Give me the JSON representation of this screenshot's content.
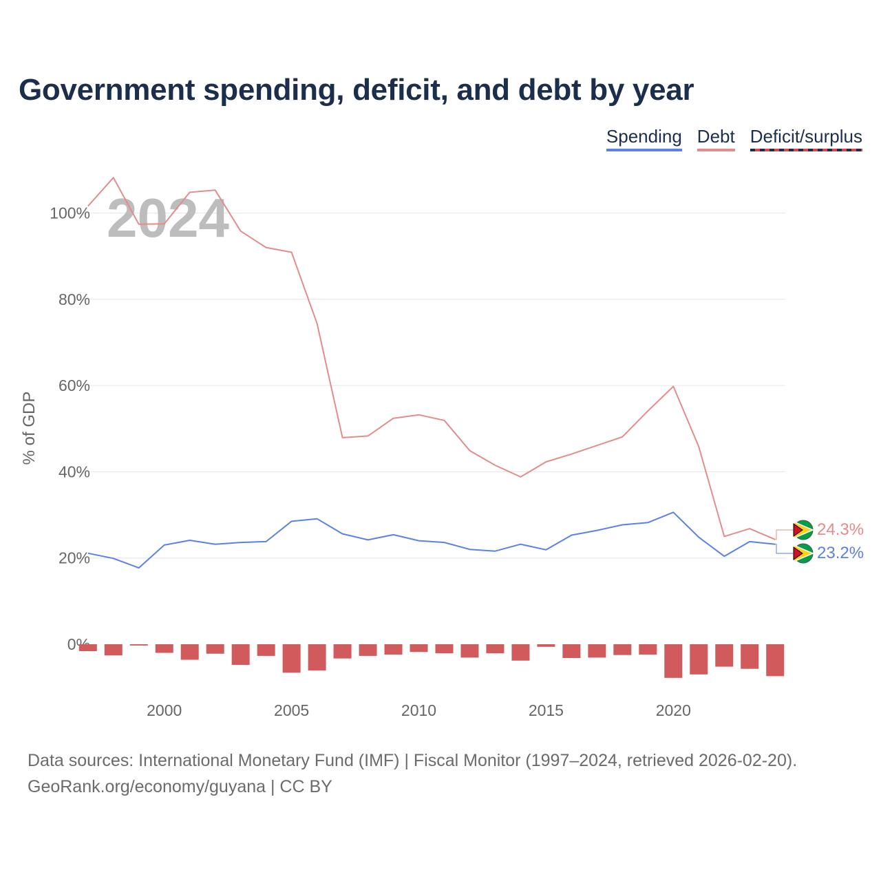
{
  "title": "Government spending, deficit, and debt by year",
  "legend": {
    "spending": "Spending",
    "debt": "Debt",
    "deficit": "Deficit/surplus"
  },
  "year_label": "2024",
  "end_labels": {
    "debt": "24.3%",
    "spending": "23.2%"
  },
  "footer": {
    "line1": "Data sources: International Monetary Fund (IMF) | Fiscal Monitor (1997–2024, retrieved 2026-02-20).",
    "line2": "GeoRank.org/economy/guyana | CC BY"
  },
  "colors": {
    "spending": "#5b80e8",
    "debt": "#e48b8e",
    "deficit_bar": "#d05a5c",
    "title": "#1b2f4c",
    "axis_text": "#666666",
    "grid": "#e6e6e6"
  },
  "chart_data": {
    "type": "line",
    "ylabel": "% of GDP",
    "xlabel": "",
    "xlim": [
      1996.6,
      2024.4
    ],
    "x_ticks": [
      2000,
      2005,
      2010,
      2015,
      2020
    ],
    "y_ticks": [
      0,
      20,
      40,
      60,
      80,
      100
    ],
    "y_tick_labels": [
      "0%",
      "20%",
      "40%",
      "60%",
      "80%",
      "100%"
    ],
    "x": [
      1997,
      1998,
      1999,
      2000,
      2001,
      2002,
      2003,
      2004,
      2005,
      2006,
      2007,
      2008,
      2009,
      2010,
      2011,
      2012,
      2013,
      2014,
      2015,
      2016,
      2017,
      2018,
      2019,
      2020,
      2021,
      2022,
      2023,
      2024
    ],
    "series": [
      {
        "name": "Spending",
        "type": "line",
        "values": [
          21.1,
          19.9,
          17.7,
          23.0,
          24.1,
          23.2,
          23.6,
          23.8,
          28.5,
          29.1,
          25.6,
          24.2,
          25.4,
          24.0,
          23.6,
          22.0,
          21.6,
          23.2,
          21.9,
          25.3,
          26.4,
          27.7,
          28.2,
          30.6,
          24.8,
          20.4,
          23.8,
          23.2
        ]
      },
      {
        "name": "Debt",
        "type": "line",
        "values": [
          101.6,
          108.2,
          97.4,
          97.5,
          104.8,
          105.3,
          95.8,
          92.0,
          90.9,
          74.4,
          47.9,
          48.3,
          52.4,
          53.2,
          51.9,
          44.9,
          41.5,
          38.8,
          42.3,
          44.1,
          46.1,
          48.1,
          54.1,
          59.8,
          45.8,
          25.0,
          26.8,
          24.3
        ]
      },
      {
        "name": "Deficit/surplus",
        "type": "bar",
        "values": [
          -1.6,
          -2.6,
          -0.3,
          -2.0,
          -3.6,
          -2.2,
          -4.8,
          -2.7,
          -6.6,
          -6.1,
          -3.3,
          -2.7,
          -2.4,
          -1.8,
          -2.1,
          -3.1,
          -2.1,
          -3.8,
          -0.6,
          -3.2,
          -3.1,
          -2.5,
          -2.4,
          -7.8,
          -7.0,
          -5.2,
          -5.7,
          -7.4
        ]
      }
    ]
  }
}
